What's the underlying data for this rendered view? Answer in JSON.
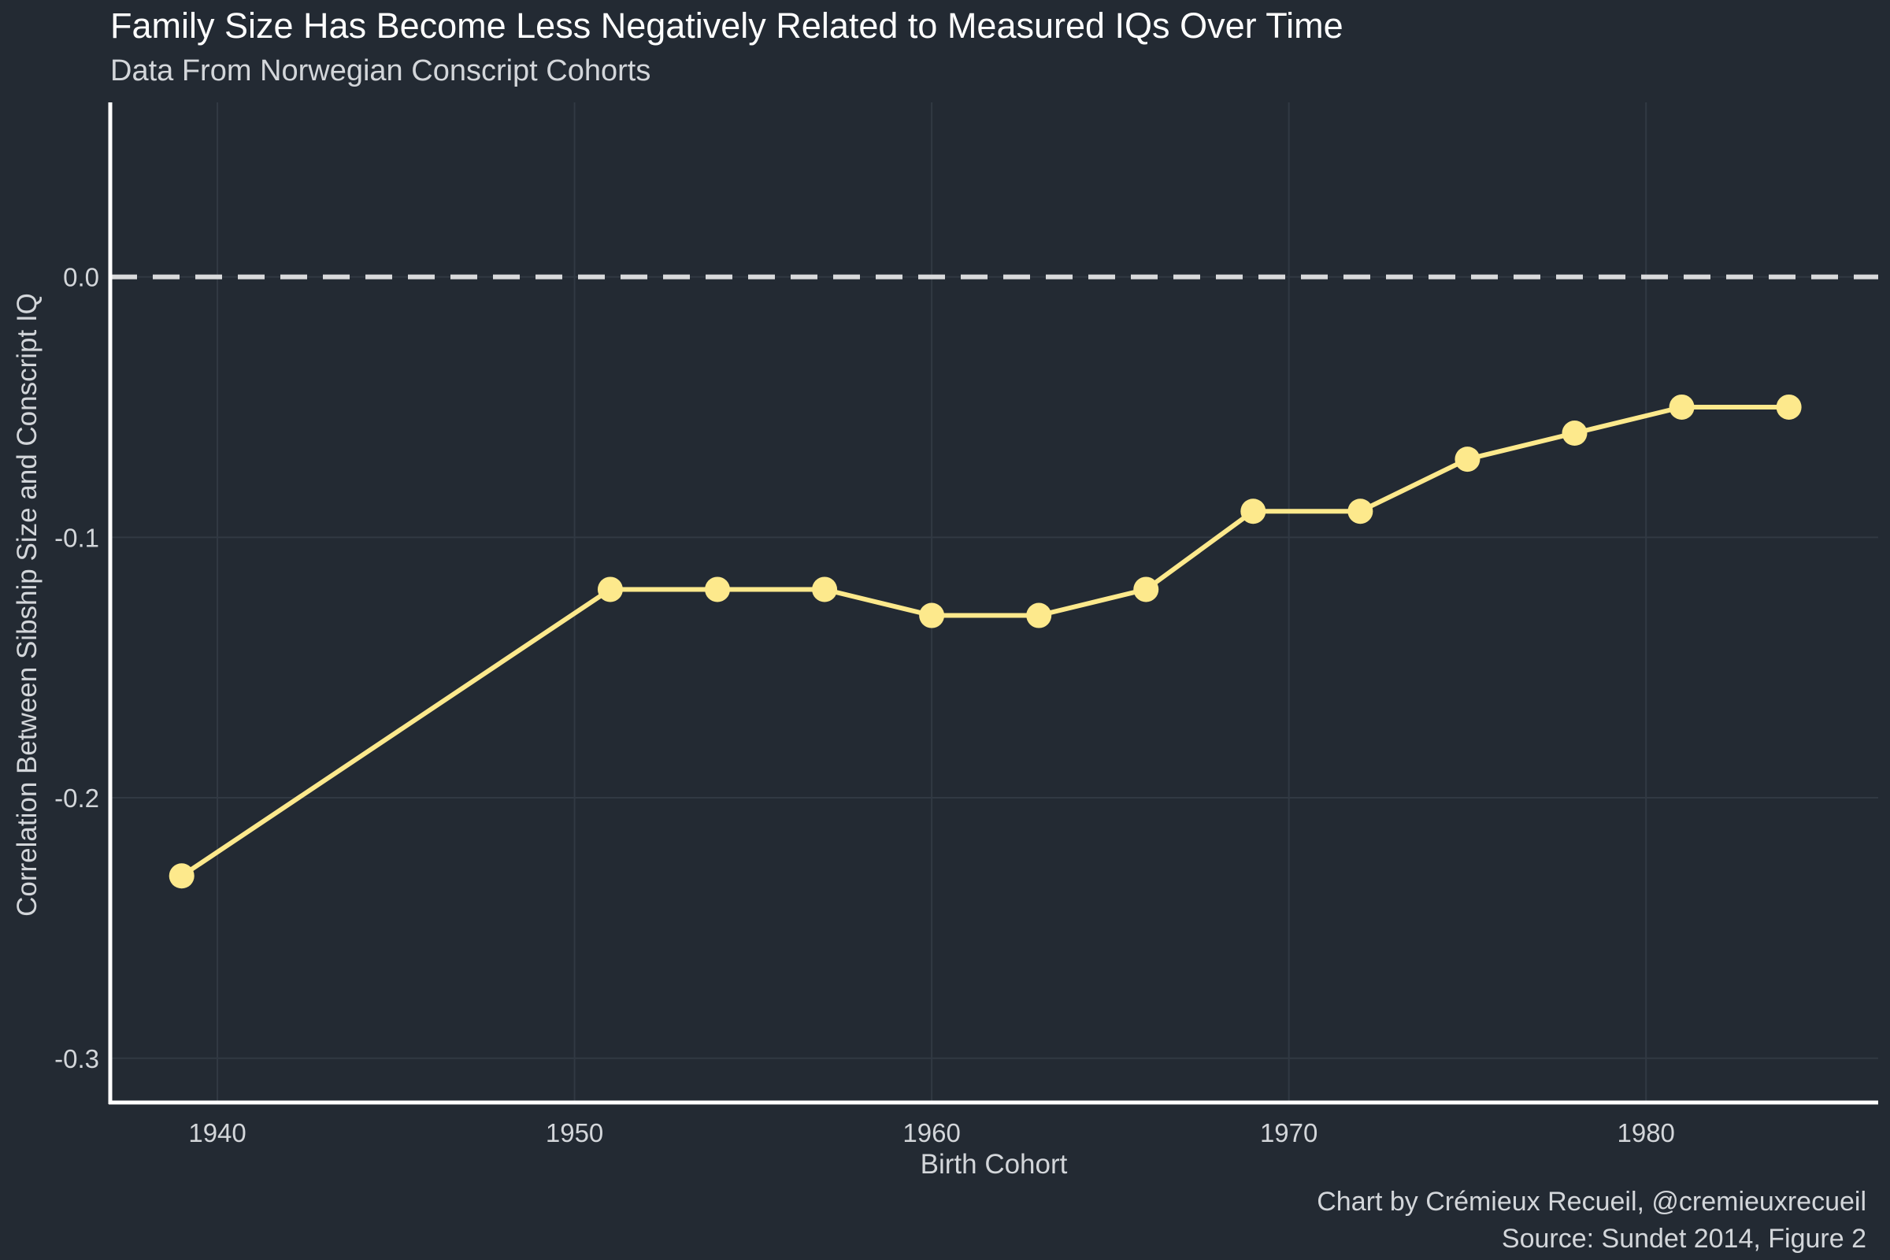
{
  "title": "Family Size Has Become Less Negatively Related to Measured IQs Over Time",
  "subtitle": "Data From Norwegian Conscript Cohorts",
  "caption": {
    "line1": "Chart by Crémieux Recueil, @cremieuxrecueil",
    "line2": "Source: Sundet 2014, Figure 2"
  },
  "colors": {
    "background": "#232a33",
    "series": "#fde98c",
    "text": "#d3d6da",
    "reference_line": "#d9dadc"
  },
  "chart_data": {
    "type": "line",
    "title": "Family Size Has Become Less Negatively Related to Measured IQs Over Time",
    "subtitle": "Data From Norwegian Conscript Cohorts",
    "xlabel": "Birth Cohort",
    "ylabel": "Correlation Between Sibship Size and Conscript IQ",
    "xlim": [
      1937,
      1986.5
    ],
    "ylim": [
      -0.317,
      0.067
    ],
    "x_ticks": [
      1940,
      1950,
      1960,
      1970,
      1980
    ],
    "y_ticks": [
      0.0,
      -0.1,
      -0.2,
      -0.3
    ],
    "x_tick_labels": [
      "1940",
      "1950",
      "1960",
      "1970",
      "1980"
    ],
    "y_tick_labels": [
      "0.0",
      "-0.1",
      "-0.2",
      "-0.3"
    ],
    "grid": true,
    "reference_line": {
      "y": 0.0,
      "style": "dashed"
    },
    "x": [
      1939,
      1951,
      1954,
      1957,
      1960,
      1963,
      1966,
      1969,
      1972,
      1975,
      1978,
      1981,
      1984
    ],
    "y": [
      -0.23,
      -0.12,
      -0.12,
      -0.12,
      -0.13,
      -0.13,
      -0.12,
      -0.09,
      -0.09,
      -0.07,
      -0.06,
      -0.05,
      -0.05
    ]
  }
}
